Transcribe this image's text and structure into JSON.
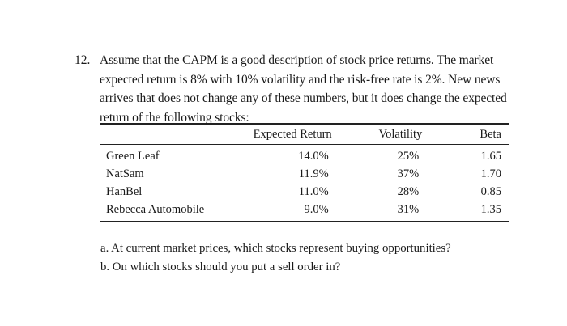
{
  "question": {
    "number": "12.",
    "lines": [
      "Assume that the CAPM is a good description of stock price returns. The market",
      "expected return is 8% with 10% volatility and the risk-free rate is 2%. New news",
      "arrives that does not change any of these numbers, but it does change the expected",
      "return of the following stocks:"
    ]
  },
  "table": {
    "headers": [
      "",
      "Expected Return",
      "Volatility",
      "Beta"
    ],
    "rows": [
      {
        "name": "Green Leaf",
        "expected_return": "14.0%",
        "volatility": "25%",
        "beta": "1.65"
      },
      {
        "name": "NatSam",
        "expected_return": "11.9%",
        "volatility": "37%",
        "beta": "1.70"
      },
      {
        "name": "HanBel",
        "expected_return": "11.0%",
        "volatility": "28%",
        "beta": "0.85"
      },
      {
        "name": "Rebecca Automobile",
        "expected_return": "9.0%",
        "volatility": "31%",
        "beta": "1.35"
      }
    ]
  },
  "subquestions": [
    "a. At current market prices, which stocks represent buying opportunities?",
    "b. On which stocks should you put a sell order in?"
  ]
}
